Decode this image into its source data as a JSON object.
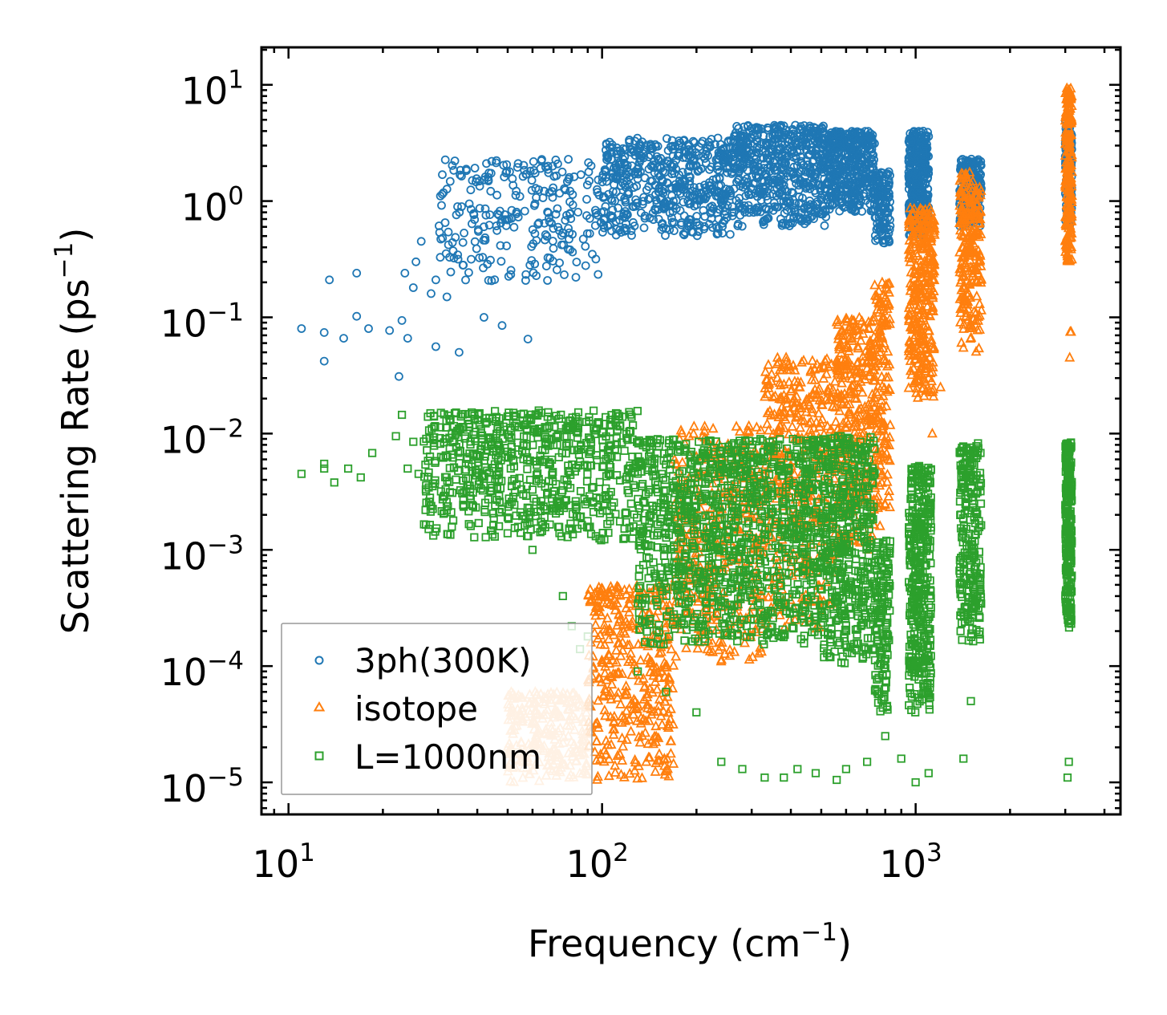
{
  "chart_data": {
    "type": "scatter",
    "xscale": "log",
    "yscale": "log",
    "xlim": [
      8.2,
      4500
    ],
    "ylim": [
      5.3e-06,
      21
    ],
    "xlabel": {
      "base": "Frequency (cm",
      "sup": "−1",
      "tail": ")"
    },
    "ylabel": {
      "base": "Scattering Rate (ps",
      "sup": "−1",
      "tail": ")"
    },
    "xticks": [
      {
        "value": 10,
        "base": "10",
        "exp": "1"
      },
      {
        "value": 100,
        "base": "10",
        "exp": "2"
      },
      {
        "value": 1000,
        "base": "10",
        "exp": "3"
      }
    ],
    "yticks": [
      {
        "value": 10,
        "base": "10",
        "exp": "1"
      },
      {
        "value": 1,
        "base": "10",
        "exp": "0"
      },
      {
        "value": 0.1,
        "base": "10",
        "exp": "−1"
      },
      {
        "value": 0.01,
        "base": "10",
        "exp": "−2"
      },
      {
        "value": 0.001,
        "base": "10",
        "exp": "−3"
      },
      {
        "value": 0.0001,
        "base": "10",
        "exp": "−4"
      },
      {
        "value": 1e-05,
        "base": "10",
        "exp": "−5"
      }
    ],
    "legend": {
      "placement": "lower-left"
    },
    "series": [
      {
        "name": "3ph(300K)",
        "marker": "circle",
        "color": "#1f77b4",
        "points": [
          [
            11,
            0.08
          ],
          [
            13,
            0.074
          ],
          [
            13,
            0.042
          ],
          [
            13.5,
            0.21
          ],
          [
            15,
            0.066
          ],
          [
            16.5,
            0.24
          ],
          [
            16.5,
            0.102
          ],
          [
            18,
            0.08
          ],
          [
            21,
            0.077
          ],
          [
            22.5,
            0.031
          ],
          [
            23,
            0.094
          ],
          [
            23.5,
            0.24
          ],
          [
            24,
            0.066
          ],
          [
            25,
            0.18
          ],
          [
            25.5,
            0.3
          ],
          [
            26.5,
            0.45
          ],
          [
            28.5,
            0.16
          ],
          [
            29.5,
            0.21
          ],
          [
            29.5,
            0.056
          ],
          [
            31,
            0.48
          ],
          [
            32,
            0.15
          ],
          [
            35,
            0.05
          ],
          [
            36,
            0.44
          ],
          [
            42,
            0.1
          ],
          [
            48,
            0.085
          ],
          [
            58,
            0.065
          ]
        ],
        "bands": [
          {
            "x": [
              30,
              100
            ],
            "y": [
              0.2,
              2.3
            ],
            "n": 260
          },
          {
            "x": [
              100,
              260
            ],
            "y": [
              0.5,
              3.5
            ],
            "n": 520
          },
          {
            "x": [
              260,
              520
            ],
            "y": [
              0.6,
              4.5
            ],
            "n": 560
          },
          {
            "x": [
              520,
              740
            ],
            "y": [
              0.8,
              4.0
            ],
            "n": 420
          },
          {
            "x": [
              740,
              830
            ],
            "y": [
              0.4,
              1.8
            ],
            "n": 120
          },
          {
            "x": [
              950,
              1100
            ],
            "y": [
              0.5,
              4.0
            ],
            "n": 340
          },
          {
            "x": [
              1380,
              1620
            ],
            "y": [
              0.6,
              2.3
            ],
            "n": 200
          },
          {
            "x": [
              3000,
              3150
            ],
            "y": [
              0.6,
              5.0
            ],
            "n": 140
          }
        ]
      },
      {
        "name": "isotope",
        "marker": "triangle",
        "color": "#ff7f0e",
        "points": [
          [
            3100,
            0.045
          ],
          [
            3110,
            0.075
          ],
          [
            3130,
            0.075
          ],
          [
            1050,
            0.045
          ],
          [
            1000,
            0.07
          ],
          [
            760,
            0.04
          ],
          [
            1200,
            0.025
          ],
          [
            1130,
            0.01
          ],
          [
            770,
            0.0016
          ]
        ],
        "bands": [
          {
            "x": [
              50,
              90
            ],
            "y": [
              1e-05,
              6e-05
            ],
            "n": 260,
            "color": "#ffbb78"
          },
          {
            "x": [
              90,
              170
            ],
            "y": [
              1e-05,
              0.0005
            ],
            "n": 380
          },
          {
            "x": [
              170,
              330
            ],
            "y": [
              0.0001,
              0.012
            ],
            "n": 380
          },
          {
            "x": [
              330,
              560
            ],
            "y": [
              0.0002,
              0.045
            ],
            "n": 420
          },
          {
            "x": [
              560,
              740
            ],
            "y": [
              0.001,
              0.1
            ],
            "n": 320
          },
          {
            "x": [
              740,
              830
            ],
            "y": [
              0.002,
              0.2
            ],
            "n": 140
          },
          {
            "x": [
              950,
              1150
            ],
            "y": [
              0.02,
              0.9
            ],
            "n": 320
          },
          {
            "x": [
              1380,
              1620
            ],
            "y": [
              0.05,
              1.8
            ],
            "n": 240
          },
          {
            "x": [
              3000,
              3150
            ],
            "y": [
              0.3,
              9.5
            ],
            "n": 200
          }
        ]
      },
      {
        "name": "L=1000nm",
        "marker": "square",
        "color": "#2ca02c",
        "points": [
          [
            11,
            0.0045
          ],
          [
            13,
            0.0055
          ],
          [
            13,
            0.005
          ],
          [
            14,
            0.0038
          ],
          [
            15.5,
            0.005
          ],
          [
            17,
            0.0042
          ],
          [
            18.5,
            0.0068
          ],
          [
            22,
            0.0095
          ],
          [
            23,
            0.0145
          ],
          [
            24,
            0.005
          ],
          [
            25,
            0.0085
          ],
          [
            26,
            0.0045
          ],
          [
            50,
            0.0019
          ],
          [
            55,
            0.0014
          ],
          [
            60,
            0.001
          ],
          [
            75,
            0.0004
          ],
          [
            80,
            0.00022
          ],
          [
            85,
            0.00014
          ],
          [
            90,
            0.00018
          ],
          [
            130,
            9e-05
          ],
          [
            160,
            6e-05
          ],
          [
            200,
            4e-05
          ],
          [
            240,
            1.5e-05
          ],
          [
            280,
            1.3e-05
          ],
          [
            330,
            1.1e-05
          ],
          [
            380,
            1.1e-05
          ],
          [
            420,
            1.3e-05
          ],
          [
            480,
            1.2e-05
          ],
          [
            560,
            1.05e-05
          ],
          [
            600,
            1.3e-05
          ],
          [
            700,
            1.5e-05
          ],
          [
            800,
            2.5e-05
          ],
          [
            900,
            1.6e-05
          ],
          [
            1000,
            1e-05
          ],
          [
            1100,
            1.2e-05
          ],
          [
            1420,
            1.6e-05
          ],
          [
            1500,
            5e-05
          ],
          [
            3050,
            1.1e-05
          ],
          [
            3080,
            1.5e-05
          ]
        ],
        "bands": [
          {
            "x": [
              27,
              130
            ],
            "y": [
              0.0012,
              0.016
            ],
            "n": 700
          },
          {
            "x": [
              130,
              260
            ],
            "y": [
              0.00015,
              0.009
            ],
            "n": 560
          },
          {
            "x": [
              260,
              500
            ],
            "y": [
              0.00015,
              0.009
            ],
            "n": 560
          },
          {
            "x": [
              500,
              740
            ],
            "y": [
              0.0001,
              0.0095
            ],
            "n": 480
          },
          {
            "x": [
              740,
              830
            ],
            "y": [
              4e-05,
              0.0012
            ],
            "n": 140
          },
          {
            "x": [
              950,
              1120
            ],
            "y": [
              4e-05,
              0.0055
            ],
            "n": 380
          },
          {
            "x": [
              1380,
              1620
            ],
            "y": [
              0.00015,
              0.0085
            ],
            "n": 240
          },
          {
            "x": [
              3000,
              3150
            ],
            "y": [
              0.0002,
              0.0085
            ],
            "n": 240
          }
        ]
      }
    ]
  }
}
